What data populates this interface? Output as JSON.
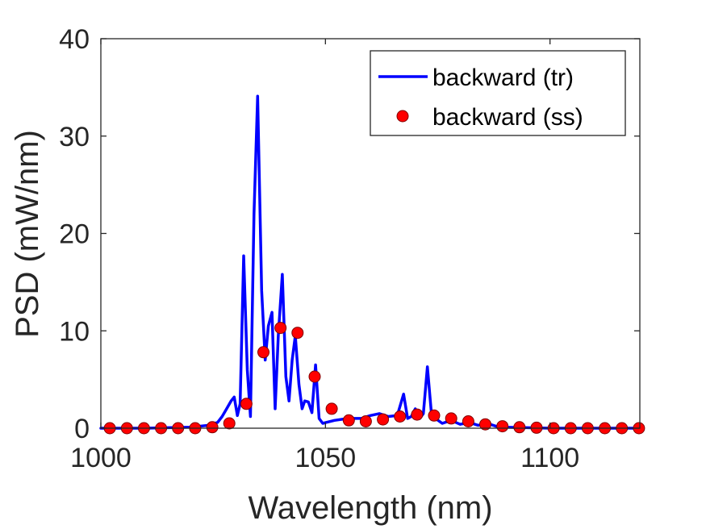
{
  "chart_data": {
    "type": "line",
    "xlabel": "Wavelength (nm)",
    "ylabel": "PSD (mW/nm)",
    "xlim": [
      1000,
      1120
    ],
    "ylim": [
      0,
      40
    ],
    "xticks": [
      1000,
      1050,
      1100
    ],
    "yticks": [
      0,
      10,
      20,
      30,
      40
    ],
    "grid": false,
    "legend_position": "top-right",
    "series": [
      {
        "name": "backward (tr)",
        "style": "line",
        "color": "#0000ff",
        "x": [
          1000,
          1010,
          1020,
          1024,
          1026,
          1027,
          1028,
          1029,
          1029.7,
          1030.4,
          1031,
          1031.8,
          1032.6,
          1033.3,
          1034.1,
          1034.9,
          1035.8,
          1036.6,
          1037.3,
          1038.1,
          1038.8,
          1039.5,
          1040.4,
          1041.2,
          1041.9,
          1042.6,
          1043.3,
          1044.1,
          1044.8,
          1045.4,
          1046.2,
          1047,
          1047.8,
          1048.6,
          1049.4,
          1050.2,
          1052,
          1055,
          1058,
          1060,
          1062,
          1064,
          1066,
          1067.4,
          1068.3,
          1069.1,
          1070,
          1071,
          1071.8,
          1072.7,
          1073.6,
          1074.5,
          1076,
          1078,
          1080,
          1082,
          1084,
          1086,
          1088,
          1090,
          1095,
          1100,
          1105,
          1110,
          1115,
          1120
        ],
        "y": [
          0,
          0,
          0.1,
          0.3,
          0.6,
          1.2,
          2,
          2.8,
          3.2,
          1.3,
          2.5,
          17.7,
          6,
          1.2,
          22,
          34.1,
          14.1,
          7,
          10.5,
          11.9,
          2,
          9.5,
          15.8,
          5.3,
          2.8,
          7,
          9.5,
          4.5,
          2,
          2.8,
          2.7,
          1.6,
          6.5,
          1,
          0.5,
          0.6,
          0.8,
          1,
          1,
          1.3,
          1.5,
          1.2,
          1.3,
          3.5,
          1,
          1.2,
          2,
          1,
          1.5,
          6.3,
          1.5,
          1,
          0.5,
          0.8,
          0.4,
          0.6,
          0.3,
          0.5,
          0.2,
          0.1,
          0.05,
          0,
          0,
          0,
          0,
          0
        ]
      },
      {
        "name": "backward (ss)",
        "style": "markers",
        "color": "#ff0000",
        "x": [
          1002,
          1005.8,
          1009.6,
          1013.4,
          1017.2,
          1021,
          1024.8,
          1028.6,
          1032.4,
          1036.2,
          1040,
          1043.8,
          1047.6,
          1051.4,
          1055.2,
          1059,
          1062.8,
          1066.6,
          1070.4,
          1074.2,
          1078,
          1081.8,
          1085.6,
          1089.4,
          1093.2,
          1097,
          1100.8,
          1104.6,
          1108.4,
          1112.2,
          1116,
          1119.8
        ],
        "y": [
          0,
          0,
          0,
          0,
          0,
          0,
          0.1,
          0.5,
          2.5,
          7.8,
          10.3,
          9.8,
          5.3,
          2,
          0.8,
          0.7,
          0.9,
          1.2,
          1.4,
          1.3,
          1,
          0.7,
          0.4,
          0.2,
          0.1,
          0.05,
          0,
          0,
          0,
          0,
          0,
          0
        ]
      }
    ]
  }
}
